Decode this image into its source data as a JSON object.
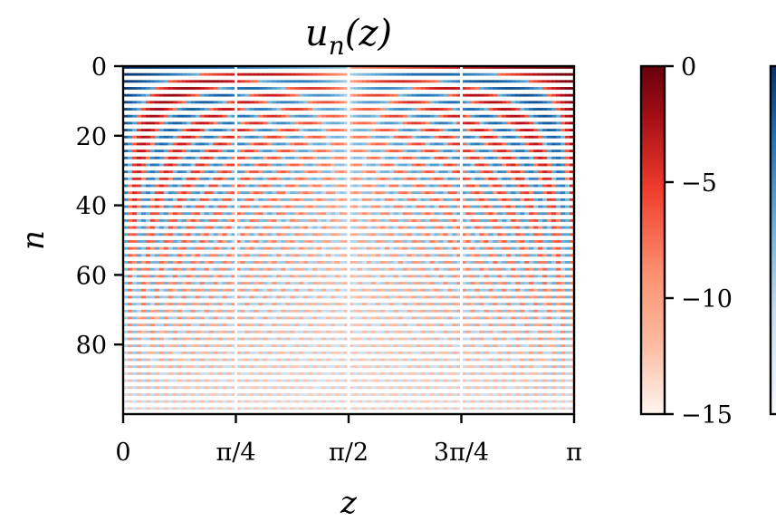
{
  "chart_data": {
    "type": "heatmap",
    "title": "u_n(z)",
    "title_main": "u",
    "title_sub": "n",
    "title_args": "(z)",
    "xlabel": "z",
    "ylabel": "n",
    "x_range": [
      0,
      3.14159
    ],
    "y_range": [
      0,
      99
    ],
    "y_inverted": true,
    "x_ticks": [
      {
        "value": 0,
        "label": "0"
      },
      {
        "value": 0.7854,
        "label": "π/4"
      },
      {
        "value": 1.5708,
        "label": "π/2"
      },
      {
        "value": 2.3562,
        "label": "3π/4"
      },
      {
        "value": 3.1416,
        "label": "π"
      }
    ],
    "y_ticks": [
      {
        "value": 0,
        "label": "0"
      },
      {
        "value": 20,
        "label": "20"
      },
      {
        "value": 40,
        "label": "40"
      },
      {
        "value": 60,
        "label": "60"
      },
      {
        "value": 80,
        "label": "80"
      }
    ],
    "n_rows": 100,
    "colorbars": [
      {
        "name": "negative",
        "colormap": "Reds_r",
        "range": [
          -15,
          0
        ],
        "ticks": [
          {
            "value": 0,
            "label": "0"
          },
          {
            "value": -5,
            "label": "−5"
          },
          {
            "value": -10,
            "label": "−10"
          },
          {
            "value": -15,
            "label": "−15"
          }
        ]
      },
      {
        "name": "positive",
        "colormap": "Blues",
        "range": [
          0,
          15
        ],
        "ticks": []
      }
    ],
    "colors": {
      "red_dark": "#67000d",
      "red_mid": "#ef3b2c",
      "red_light": "#fff5f0",
      "blue_dark": "#08306b",
      "blue_mid": "#4292c6",
      "blue_light": "#f7fbff"
    }
  }
}
